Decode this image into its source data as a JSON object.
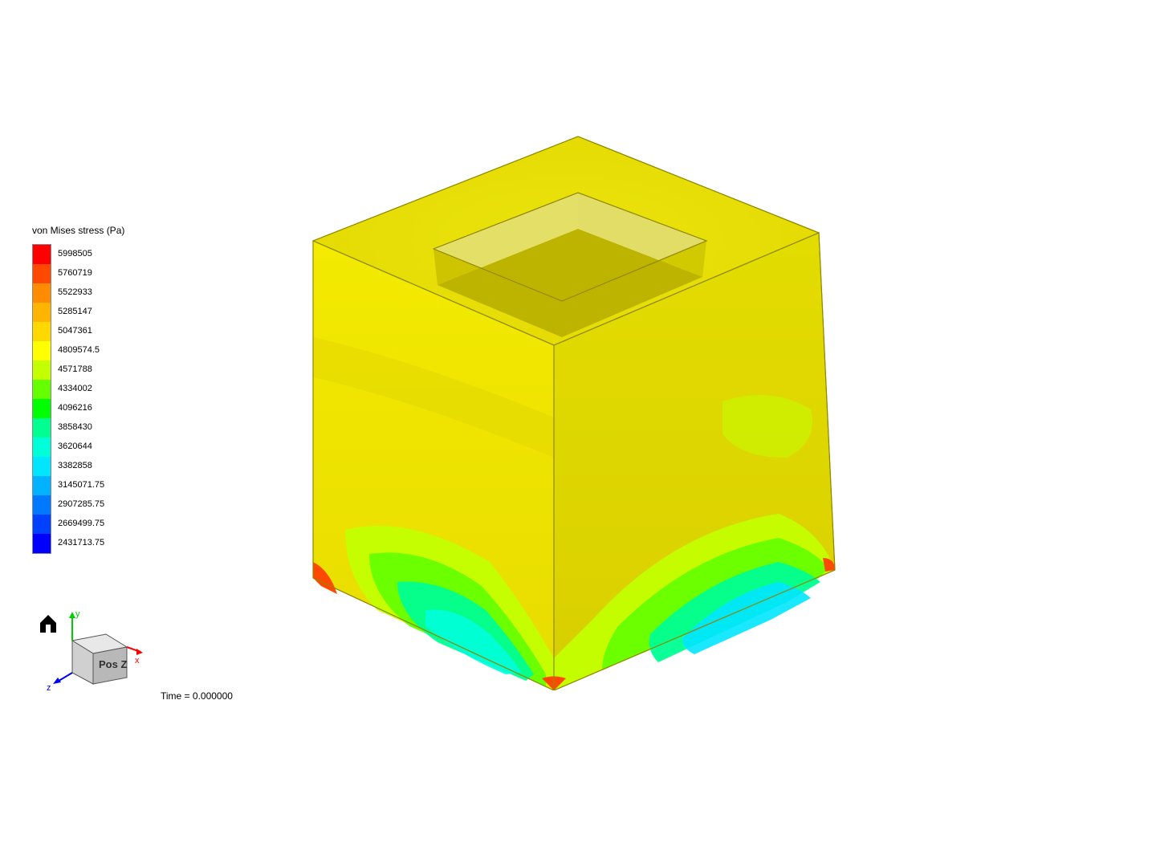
{
  "legend": {
    "title": "von Mises stress (Pa)",
    "title_fontsize": 12,
    "label_fontsize": 11,
    "swatch_width": 22,
    "swatch_height": 24,
    "entries": [
      {
        "value": "5998505",
        "color": "#ff0000"
      },
      {
        "value": "5760719",
        "color": "#ff4800"
      },
      {
        "value": "5522933",
        "color": "#ff8c00"
      },
      {
        "value": "5285147",
        "color": "#ffb400"
      },
      {
        "value": "5047361",
        "color": "#ffd800"
      },
      {
        "value": "4809574.5",
        "color": "#ffff00"
      },
      {
        "value": "4571788",
        "color": "#c3ff00"
      },
      {
        "value": "4334002",
        "color": "#66ff00"
      },
      {
        "value": "4096216",
        "color": "#00ff00"
      },
      {
        "value": "3858430",
        "color": "#00ff91"
      },
      {
        "value": "3620644",
        "color": "#00ffd9"
      },
      {
        "value": "3382858",
        "color": "#00e6ff"
      },
      {
        "value": "3145071.75",
        "color": "#00b2ff"
      },
      {
        "value": "2907285.75",
        "color": "#0078ff"
      },
      {
        "value": "2669499.75",
        "color": "#0040ff"
      },
      {
        "value": "2431713.75",
        "color": "#0000ff"
      }
    ]
  },
  "time": {
    "label": "Time = 0.000000"
  },
  "nav": {
    "face_label": "Pos Z",
    "axes": {
      "x": {
        "label": "x",
        "color": "#ff0000"
      },
      "y": {
        "label": "y",
        "color": "#00cc00"
      },
      "z": {
        "label": "z",
        "color": "#0000ff"
      }
    },
    "home_icon_color": "#000000",
    "cube_fill_top": "#e8e8e8",
    "cube_fill_front": "#d0d0d0",
    "cube_fill_side": "#b8b8b8",
    "cube_stroke": "#555555"
  },
  "model": {
    "type": "3d-fea-contour",
    "geometry": "hollow_cube_with_square_recess_on_top",
    "projection": "isometric",
    "background_color": "#ffffff",
    "mesh_edge_color": "none",
    "top_recess": {
      "outer_top_fill": "#ebe40c",
      "inner_wall_left": "#c8bd00",
      "inner_wall_right": "#d8cf00",
      "inner_floor": "#bdb400"
    },
    "front_face_base": "#f3ea00",
    "right_face_base": "#e3dc00",
    "front_bottom_contours": [
      {
        "color": "#c3ff00"
      },
      {
        "color": "#66ff00"
      },
      {
        "color": "#00ff91"
      },
      {
        "color": "#00ffd9"
      }
    ],
    "right_bottom_contours": [
      {
        "color": "#c3ff00"
      },
      {
        "color": "#66ff00"
      },
      {
        "color": "#00ff91"
      },
      {
        "color": "#00e6ff"
      }
    ],
    "corner_hotspots": {
      "color": "#ff4800"
    },
    "outline_color": "#999900"
  }
}
